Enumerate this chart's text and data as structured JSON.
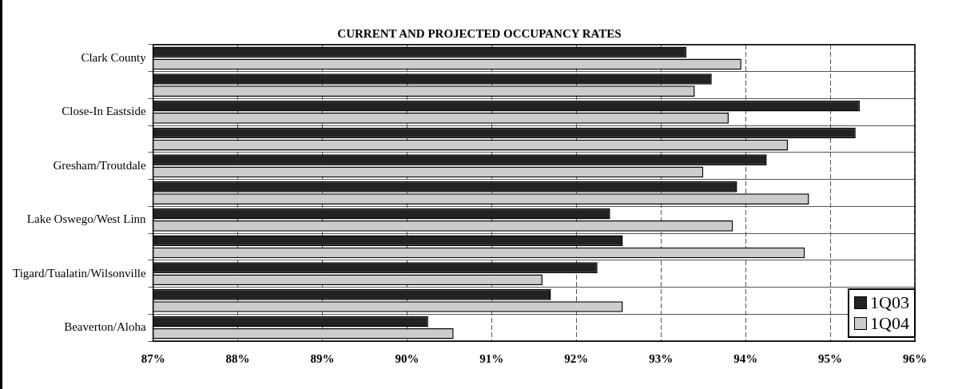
{
  "chart_data": {
    "type": "bar",
    "orientation": "horizontal",
    "title": "CURRENT AND PROJECTED OCCUPANCY RATES",
    "categories": [
      "Clark County",
      null,
      "Close-In Eastside",
      null,
      "Gresham/Troutdale",
      null,
      "Lake Oswego/West Linn",
      null,
      "Tigard/Tualatin/Wilsonville",
      null,
      "Beaverton/Aloha"
    ],
    "series": [
      {
        "name": "1Q03",
        "color": "#222222",
        "values": [
          93.3,
          93.6,
          95.35,
          95.3,
          94.25,
          93.9,
          92.4,
          92.55,
          92.25,
          91.7,
          90.25
        ]
      },
      {
        "name": "1Q04",
        "color": "#cccccc",
        "values": [
          93.95,
          93.4,
          93.8,
          94.5,
          93.5,
          94.75,
          93.85,
          94.7,
          91.6,
          92.55,
          90.55
        ]
      }
    ],
    "xlim": [
      87,
      96
    ],
    "xticks": [
      {
        "value": 87,
        "label": "87%"
      },
      {
        "value": 88,
        "label": "88%"
      },
      {
        "value": 89,
        "label": "89%"
      },
      {
        "value": 90,
        "label": "90%"
      },
      {
        "value": 91,
        "label": "91%"
      },
      {
        "value": 92,
        "label": "92%"
      },
      {
        "value": 93,
        "label": "93%"
      },
      {
        "value": 94,
        "label": "94%"
      },
      {
        "value": 95,
        "label": "95%"
      },
      {
        "value": 96,
        "label": "96%"
      }
    ],
    "grid": true,
    "legend": "bottom right"
  }
}
